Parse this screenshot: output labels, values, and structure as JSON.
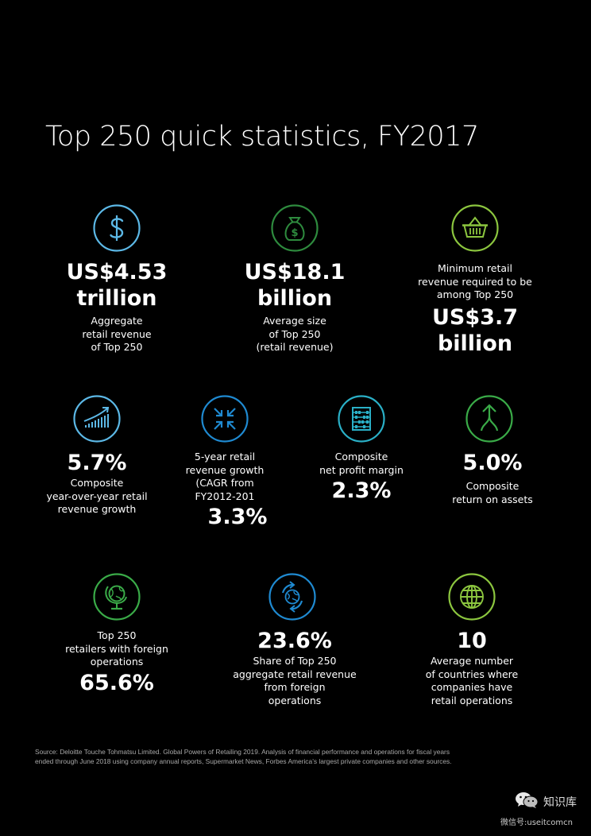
{
  "title": "Top 250 quick statistics, FY2017",
  "stats": {
    "aggregate": {
      "icon": "dollar-icon",
      "value_lines": [
        "US$4.53",
        "trillion"
      ],
      "desc_lines": [
        "Aggregate",
        "retail revenue",
        "of Top 250"
      ]
    },
    "average_size": {
      "icon": "money-bag-icon",
      "value_lines": [
        "US$18.1",
        "billion"
      ],
      "desc_lines": [
        "Average size",
        "of Top 250",
        "(retail revenue)"
      ]
    },
    "minimum": {
      "icon": "basket-icon",
      "desc_lines": [
        "Minimum retail",
        "revenue required to be",
        "among Top 250"
      ],
      "value_lines": [
        "US$3.7",
        "billion"
      ]
    },
    "yoy_growth": {
      "icon": "growth-chart-icon",
      "value": "5.7%",
      "desc_lines": [
        "Composite",
        "year-over-year retail",
        "revenue growth"
      ]
    },
    "cagr": {
      "icon": "compress-arrows-icon",
      "desc_lines": [
        "5-year retail",
        "revenue growth",
        "(CAGR from",
        "FY2012-201"
      ],
      "value": "3.3%"
    },
    "net_margin": {
      "icon": "abacus-icon",
      "desc_lines": [
        "Composite",
        "net profit margin"
      ],
      "value": "2.3%"
    },
    "roa": {
      "icon": "split-arrow-icon",
      "value": "5.0%",
      "desc_lines": [
        "Composite",
        "return on assets"
      ]
    },
    "foreign_ops": {
      "icon": "desk-globe-icon",
      "desc_lines": [
        "Top 250",
        "retailers with foreign",
        "operations"
      ],
      "value": "65.6%"
    },
    "foreign_share": {
      "icon": "globe-cycle-icon",
      "value": "23.6%",
      "desc_lines": [
        "Share of Top 250",
        "aggregate retail revenue",
        "from foreign",
        "operations"
      ]
    },
    "countries": {
      "icon": "world-grid-icon",
      "value": "10",
      "desc_lines": [
        "Average number",
        "of countries where",
        "companies have",
        "retail operations"
      ]
    }
  },
  "source_lines": [
    "Source: Deloitte Touche Tohmatsu Limited. Global Powers of Retailing 2019. Analysis of financial performance and operations for fiscal years",
    "ended through June 2018 using company annual reports, Supermarket News, Forbes America’s largest private companies and other sources."
  ],
  "watermark": {
    "icon": "wechat-icon",
    "name": "知识库",
    "sub": "微信号:useitcomcn"
  },
  "colors": {
    "background": "#000000",
    "light_blue": "#5cb8e6",
    "dark_green": "#2e8b3e",
    "lime_green": "#8cc63f",
    "teal": "#2ab0c7",
    "green": "#3aab48",
    "blue": "#1f8ad1"
  }
}
